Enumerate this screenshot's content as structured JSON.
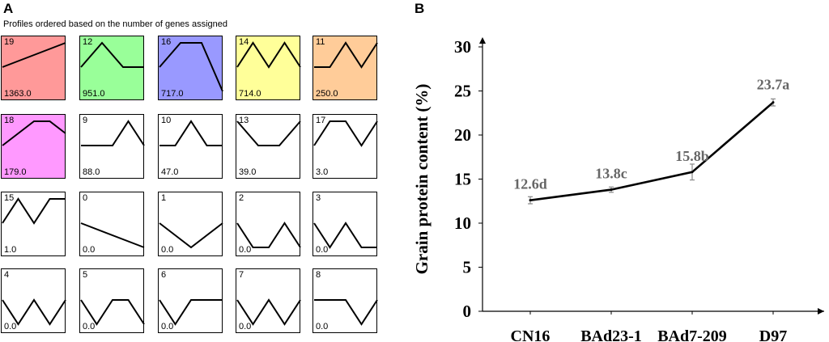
{
  "panel_a": {
    "letter": "A",
    "subtitle": "Profiles ordered based on the number of genes assigned",
    "profiles": [
      {
        "id": "19",
        "count": "1363.0",
        "color": "#ff9999",
        "shape": [
          0.5,
          0.25,
          0.0
        ]
      },
      {
        "id": "12",
        "count": "951.0",
        "color": "#99ff99",
        "shape": [
          0.5,
          0.0,
          0.5,
          0.5
        ]
      },
      {
        "id": "16",
        "count": "717.0",
        "color": "#9999ff",
        "shape": [
          0.5,
          0.0,
          0.0,
          1.0
        ]
      },
      {
        "id": "14",
        "count": "714.0",
        "color": "#ffff99",
        "shape": [
          0.5,
          0.0,
          0.5,
          0.0,
          0.5
        ]
      },
      {
        "id": "11",
        "count": "250.0",
        "color": "#ffcc99",
        "shape": [
          0.5,
          0.5,
          0.0,
          0.5,
          0.0
        ]
      },
      {
        "id": "18",
        "count": "179.0",
        "color": "#ff99ff",
        "shape": [
          0.5,
          0.25,
          0.0,
          0.0,
          0.25
        ]
      },
      {
        "id": "9",
        "count": "88.0",
        "color": "#ffffff",
        "shape": [
          0.5,
          0.5,
          0.5,
          0.0,
          0.5
        ]
      },
      {
        "id": "10",
        "count": "47.0",
        "color": "#ffffff",
        "shape": [
          0.5,
          0.5,
          0.0,
          0.5,
          0.5
        ]
      },
      {
        "id": "13",
        "count": "39.0",
        "color": "#ffffff",
        "shape": [
          0.0,
          0.5,
          0.5,
          0.0
        ]
      },
      {
        "id": "17",
        "count": "3.0",
        "color": "#ffffff",
        "shape": [
          0.5,
          0.0,
          0.0,
          0.5,
          0.0
        ]
      },
      {
        "id": "15",
        "count": "1.0",
        "color": "#ffffff",
        "shape": [
          0.5,
          0.0,
          0.5,
          0.0,
          0.0
        ]
      },
      {
        "id": "0",
        "count": "0.0",
        "color": "#ffffff",
        "shape": [
          0.5,
          1.0
        ]
      },
      {
        "id": "1",
        "count": "0.0",
        "color": "#ffffff",
        "shape": [
          0.5,
          1.0,
          0.5
        ]
      },
      {
        "id": "2",
        "count": "0.0",
        "color": "#ffffff",
        "shape": [
          0.5,
          1.0,
          1.0,
          0.5,
          1.0
        ]
      },
      {
        "id": "3",
        "count": "0.0",
        "color": "#ffffff",
        "shape": [
          0.5,
          1.0,
          0.5,
          1.0,
          1.0
        ]
      },
      {
        "id": "4",
        "count": "0.0",
        "color": "#ffffff",
        "shape": [
          0.5,
          1.0,
          0.5,
          1.0,
          0.5
        ]
      },
      {
        "id": "5",
        "count": "0.0",
        "color": "#ffffff",
        "shape": [
          0.5,
          1.0,
          0.5,
          0.5,
          1.0
        ]
      },
      {
        "id": "6",
        "count": "0.0",
        "color": "#ffffff",
        "shape": [
          0.5,
          1.0,
          0.5,
          0.5,
          0.5
        ]
      },
      {
        "id": "7",
        "count": "0.0",
        "color": "#ffffff",
        "shape": [
          0.5,
          1.0,
          0.5,
          1.0,
          0.5
        ]
      },
      {
        "id": "8",
        "count": "0.0",
        "color": "#ffffff",
        "shape": [
          0.5,
          0.5,
          0.5,
          1.0,
          0.5
        ]
      }
    ]
  },
  "panel_b": {
    "letter": "B"
  },
  "chart_data": {
    "type": "line",
    "categories": [
      "CN16",
      "BAd23-1",
      "BAd7-209",
      "D97"
    ],
    "values": [
      12.6,
      13.8,
      15.8,
      23.7
    ],
    "errors": [
      0.4,
      0.3,
      0.9,
      0.4
    ],
    "data_labels": [
      "12.6d",
      "13.8c",
      "15.8b",
      "23.7a"
    ],
    "ylabel": "Grain protein content (%)",
    "xlabel": "",
    "ylim": [
      0,
      30
    ],
    "yticks": [
      0,
      5,
      10,
      15,
      20,
      25,
      30
    ],
    "line_color": "#000000",
    "label_color": "#666666"
  }
}
